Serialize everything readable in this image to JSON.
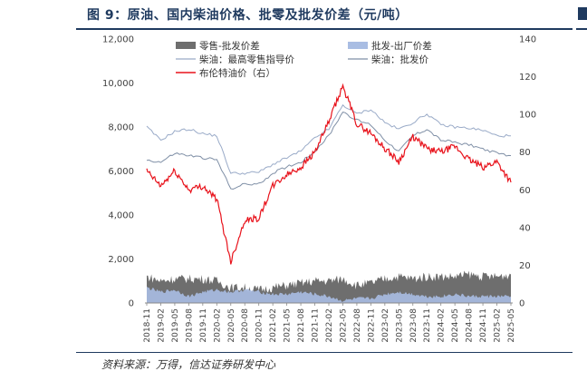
{
  "caption": "图 9：原油、国内柴油价格、批零及批发价差（元/吨）",
  "source": "资料来源：万得，信达证券研发中心",
  "chart_data": {
    "type": "line",
    "y_left": {
      "range": [
        0,
        12000
      ],
      "ticks": [
        "0",
        "2,000",
        "4,000",
        "6,000",
        "8,000",
        "10,000",
        "12,000"
      ]
    },
    "y_right": {
      "range": [
        0,
        140
      ],
      "ticks": [
        "0",
        "20",
        "40",
        "60",
        "80",
        "100",
        "120",
        "140"
      ]
    },
    "x_ticks": [
      "2018-11",
      "2019-02",
      "2019-05",
      "2019-08",
      "2019-11",
      "2020-02",
      "2020-05",
      "2020-08",
      "2020-11",
      "2021-02",
      "2021-05",
      "2021-08",
      "2021-11",
      "2022-02",
      "2022-05",
      "2022-08",
      "2022-11",
      "2023-02",
      "2023-05",
      "2023-08",
      "2023-11",
      "2024-02",
      "2024-05",
      "2024-08",
      "2024-11",
      "2025-02",
      "2025-05"
    ],
    "legend": [
      {
        "label": "零售-批发价差",
        "color": "#6e6e6e",
        "kind": "area"
      },
      {
        "label": "批发-出厂价差",
        "color": "#a9bde3",
        "kind": "area"
      },
      {
        "label": "柴油：最高零售指导价",
        "color": "#9aabc8",
        "kind": "line"
      },
      {
        "label": "柴油：批发价",
        "color": "#7f8fa6",
        "kind": "line"
      },
      {
        "label": "布伦特油价（右）",
        "color": "#e8121b",
        "kind": "line"
      }
    ],
    "series": [
      {
        "name": "柴油：最高零售指导价",
        "axis": "left",
        "color": "#9aabc8",
        "values": [
          8000,
          7400,
          7800,
          7900,
          7700,
          7600,
          5900,
          5900,
          5950,
          6300,
          6600,
          6900,
          7500,
          7900,
          9000,
          8600,
          8800,
          8200,
          7900,
          8200,
          8600,
          8100,
          8000,
          7950,
          7850,
          7600,
          7600
        ]
      },
      {
        "name": "柴油：批发价",
        "axis": "left",
        "color": "#7f8fa6",
        "values": [
          6500,
          6400,
          6800,
          6700,
          6600,
          6500,
          5200,
          5400,
          5400,
          5900,
          6200,
          6400,
          6900,
          7600,
          8700,
          8300,
          8100,
          7400,
          6900,
          7600,
          7900,
          7400,
          7300,
          7200,
          7000,
          6800,
          6700
        ]
      },
      {
        "name": "布伦特油价（右）",
        "axis": "right",
        "color": "#e8121b",
        "values": [
          70,
          62,
          70,
          60,
          62,
          55,
          22,
          44,
          45,
          62,
          68,
          72,
          80,
          96,
          115,
          95,
          90,
          82,
          75,
          88,
          82,
          80,
          83,
          76,
          72,
          75,
          64
        ]
      },
      {
        "name": "零售-批发价差",
        "axis": "left",
        "color": "#6e6e6e",
        "values": [
          1200,
          1000,
          1100,
          1100,
          1100,
          1000,
          700,
          700,
          600,
          700,
          800,
          900,
          1000,
          1000,
          1100,
          800,
          900,
          1100,
          1200,
          1100,
          1200,
          1200,
          1200,
          1300,
          1200,
          1200,
          1300
        ]
      },
      {
        "name": "批发-出厂价差",
        "axis": "left",
        "color": "#a9bde3",
        "values": [
          700,
          500,
          600,
          300,
          500,
          600,
          500,
          600,
          500,
          400,
          400,
          500,
          400,
          300,
          100,
          200,
          200,
          400,
          500,
          400,
          300,
          300,
          400,
          300,
          300,
          300,
          300
        ]
      }
    ]
  }
}
